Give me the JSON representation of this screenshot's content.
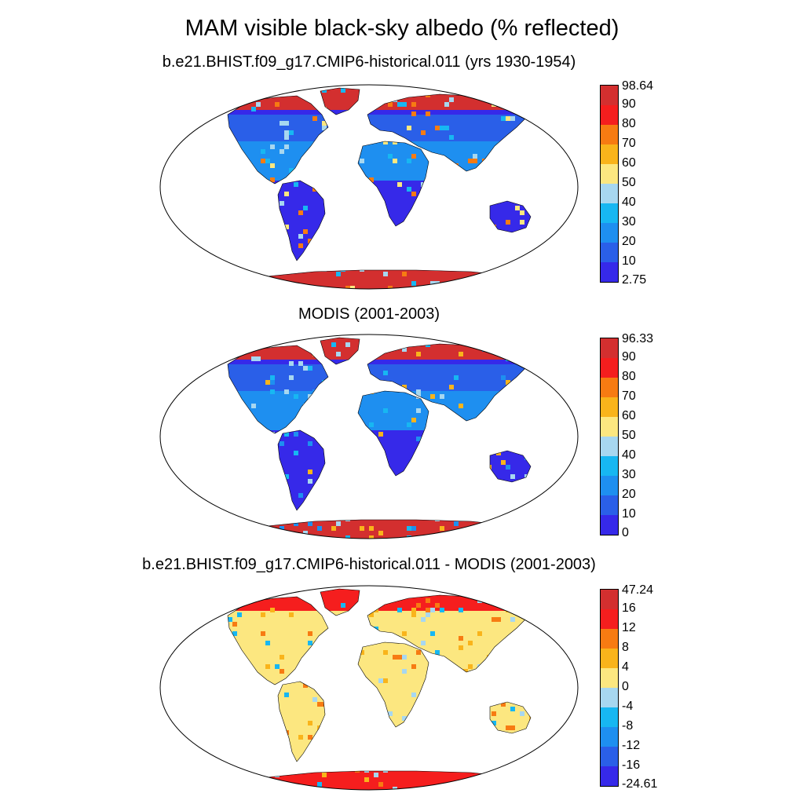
{
  "title": "MAM visible black-sky albedo (% reflected)",
  "panels": [
    {
      "subtitle": "b.e21.BHIST.f09_g17.CMIP6-historical.011 (yrs 1930-1954)",
      "labels": [
        "98.64",
        "90",
        "80",
        "70",
        "60",
        "50",
        "40",
        "30",
        "20",
        "10",
        "2.75"
      ],
      "colors": [
        "#d32f2f",
        "#f51e1e",
        "#f77b12",
        "#f9b41b",
        "#fce780",
        "#a7d7f0",
        "#17b7f2",
        "#1e8ff0",
        "#2a5fe8",
        "#3629e9"
      ],
      "ocean_scheme": "model"
    },
    {
      "subtitle": "MODIS (2001-2003)",
      "labels": [
        "96.33",
        "90",
        "80",
        "70",
        "60",
        "50",
        "40",
        "30",
        "20",
        "10",
        "0"
      ],
      "colors": [
        "#d32f2f",
        "#f51e1e",
        "#f77b12",
        "#f9b41b",
        "#fce780",
        "#a7d7f0",
        "#17b7f2",
        "#1e8ff0",
        "#2a5fe8",
        "#3629e9"
      ],
      "ocean_scheme": "obs"
    },
    {
      "subtitle": "b.e21.BHIST.f09_g17.CMIP6-historical.011 - MODIS (2001-2003)",
      "labels": [
        "47.24",
        "16",
        "12",
        "8",
        "4",
        "0",
        "-4",
        "-8",
        "-12",
        "-16",
        "-24.61"
      ],
      "colors": [
        "#d32f2f",
        "#f51e1e",
        "#f77b12",
        "#f9b41b",
        "#fce780",
        "#a7d7f0",
        "#17b7f2",
        "#1e8ff0",
        "#2a5fe8",
        "#3629e9"
      ],
      "ocean_scheme": "diff"
    }
  ]
}
